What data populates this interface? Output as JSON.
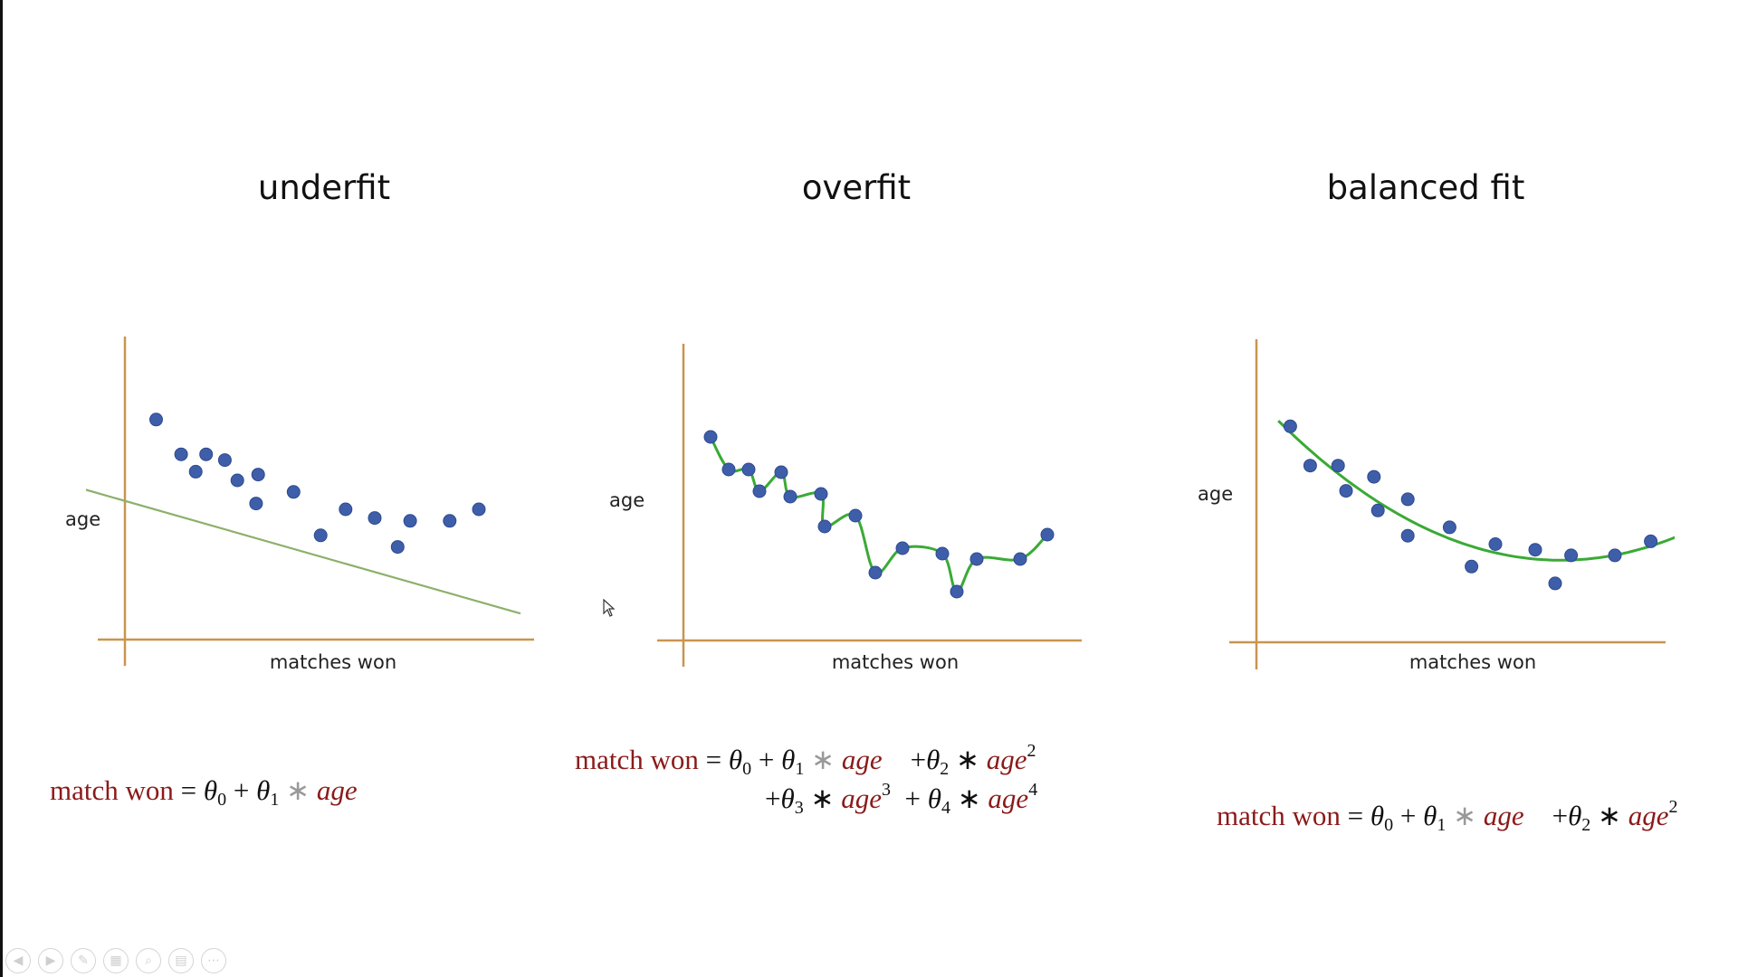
{
  "slide": {
    "panels": [
      {
        "title": "underfit",
        "ylabel": "age",
        "xlabel": "matches won",
        "equation": {
          "lhs": "match won",
          "line1": [
            {
              "op": " = "
            },
            {
              "sym": "θ",
              "sub": "0"
            },
            {
              "op": " + "
            },
            {
              "sym": "θ",
              "sub": "1"
            },
            {
              "op": " ∗ ",
              "style": "gray"
            },
            {
              "var": "age"
            }
          ]
        }
      },
      {
        "title": "overfit",
        "ylabel": "age",
        "xlabel": "matches won",
        "equation": {
          "lhs": "match won",
          "line1": [
            {
              "op": " = "
            },
            {
              "sym": "θ",
              "sub": "0"
            },
            {
              "op": " + "
            },
            {
              "sym": "θ",
              "sub": "1"
            },
            {
              "op": " ∗ ",
              "style": "gray"
            },
            {
              "var": "age"
            },
            {
              "op": "    +"
            },
            {
              "sym": "θ",
              "sub": "2"
            },
            {
              "op": " ∗ "
            },
            {
              "var": "age",
              "sup": "2"
            }
          ],
          "line2": [
            {
              "op": "+"
            },
            {
              "sym": "θ",
              "sub": "3"
            },
            {
              "op": " ∗ "
            },
            {
              "var": "age",
              "sup": "3"
            },
            {
              "op": "  + "
            },
            {
              "sym": "θ",
              "sub": "4"
            },
            {
              "op": " ∗ "
            },
            {
              "var": "age",
              "sup": "4"
            }
          ]
        }
      },
      {
        "title": "balanced fit",
        "ylabel": "age",
        "xlabel": "matches won",
        "equation": {
          "lhs": "match won",
          "line1": [
            {
              "op": " = "
            },
            {
              "sym": "θ",
              "sub": "0"
            },
            {
              "op": " + "
            },
            {
              "sym": "θ",
              "sub": "1"
            },
            {
              "op": " ∗ ",
              "style": "gray"
            },
            {
              "var": "age"
            },
            {
              "op": "    +"
            },
            {
              "sym": "θ",
              "sub": "2"
            },
            {
              "op": " ∗ "
            },
            {
              "var": "age",
              "sup": "2"
            }
          ]
        }
      }
    ]
  },
  "chart_data": [
    {
      "type": "scatter",
      "title": "underfit",
      "xlabel": "matches won",
      "ylabel": "age",
      "points": [
        [
          1.5,
          7.6
        ],
        [
          2.7,
          6.4
        ],
        [
          3.9,
          6.4
        ],
        [
          3.4,
          5.8
        ],
        [
          4.8,
          6.2
        ],
        [
          5.4,
          5.5
        ],
        [
          6.4,
          5.7
        ],
        [
          6.3,
          4.7
        ],
        [
          8.1,
          5.1
        ],
        [
          9.4,
          3.6
        ],
        [
          10.6,
          4.5
        ],
        [
          12,
          4.2
        ],
        [
          13.1,
          3.2
        ],
        [
          13.7,
          4.1
        ],
        [
          15.6,
          4.1
        ],
        [
          17,
          4.5
        ]
      ],
      "fit_line": [
        [
          -2,
          5.2
        ],
        [
          19,
          0.9
        ]
      ],
      "xlim": [
        -2,
        20
      ],
      "ylim": [
        -0.8,
        9
      ]
    },
    {
      "type": "scatter",
      "title": "overfit",
      "xlabel": "matches won",
      "ylabel": "age",
      "points": [
        [
          1.5,
          7.5
        ],
        [
          2.5,
          6.3
        ],
        [
          3.6,
          6.3
        ],
        [
          4.2,
          5.5
        ],
        [
          5.4,
          6.2
        ],
        [
          5.9,
          5.3
        ],
        [
          7.6,
          5.4
        ],
        [
          7.8,
          4.2
        ],
        [
          9.5,
          4.6
        ],
        [
          10.6,
          2.5
        ],
        [
          12.1,
          3.4
        ],
        [
          14.3,
          3.2
        ],
        [
          15.1,
          1.8
        ],
        [
          16.2,
          3
        ],
        [
          18.6,
          3
        ],
        [
          20.1,
          3.9
        ]
      ],
      "fit_curve": "interpolating",
      "xlim": [
        -1,
        21
      ],
      "ylim": [
        -0.6,
        9
      ]
    },
    {
      "type": "scatter",
      "title": "balanced fit",
      "xlabel": "matches won",
      "ylabel": "age",
      "points": [
        [
          1.7,
          7.7
        ],
        [
          2.7,
          6.3
        ],
        [
          4.1,
          6.3
        ],
        [
          4.5,
          5.4
        ],
        [
          5.9,
          5.9
        ],
        [
          6.1,
          4.7
        ],
        [
          7.6,
          5.1
        ],
        [
          7.6,
          3.8
        ],
        [
          9.7,
          4.1
        ],
        [
          10.8,
          2.7
        ],
        [
          12,
          3.5
        ],
        [
          14,
          3.3
        ],
        [
          15,
          2.1
        ],
        [
          15.8,
          3.1
        ],
        [
          18,
          3.1
        ],
        [
          19.8,
          3.6
        ]
      ],
      "fit_curve": "quadratic",
      "xlim": [
        -0.5,
        22
      ],
      "ylim": [
        -0.6,
        9
      ]
    }
  ],
  "toolbar": {
    "icons": [
      "previous-icon",
      "next-icon",
      "pen-icon",
      "slides-icon",
      "zoom-icon",
      "subtitles-icon",
      "more-icon"
    ]
  },
  "colors": {
    "axis": "#c9954f",
    "point": "#3f5eaa",
    "underfit_line": "#8db06a",
    "fit_curve": "#3aaa35",
    "equation_red": "#8b1a1a"
  }
}
